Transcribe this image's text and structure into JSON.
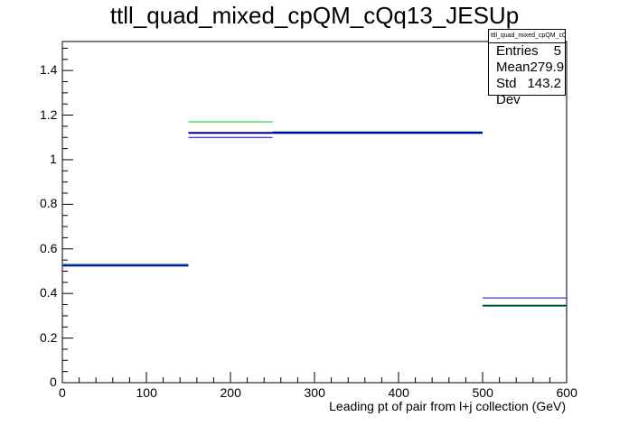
{
  "title": "ttll_quad_mixed_cpQM_cQq13_JESUp",
  "stats": {
    "name": "ttll_quad_mixed_cpQM_cQq13_JESUp",
    "rows": [
      {
        "label": "Entries",
        "value": "5"
      },
      {
        "label": "Mean",
        "value": "279.9"
      },
      {
        "label": "Std Dev",
        "value": "143.2"
      }
    ]
  },
  "chart_data": {
    "type": "line",
    "title": "ttll_quad_mixed_cpQM_cQq13_JESUp",
    "xlabel": "Leading pt of pair from l+j collection (GeV)",
    "ylabel": "",
    "xlim": [
      0,
      600
    ],
    "ylim": [
      0,
      1.53
    ],
    "x_ticks": [
      "0",
      "100",
      "200",
      "300",
      "400",
      "500",
      "600"
    ],
    "y_ticks": [
      "0",
      "0.2",
      "0.4",
      "0.6",
      "0.8",
      "1",
      "1.2",
      "1.4"
    ],
    "grid": false,
    "series": [
      {
        "color": "#000080",
        "bins": [
          {
            "x0": 0,
            "x1": 150,
            "y": 0.525
          },
          {
            "x0": 150,
            "x1": 250,
            "y": 1.12
          },
          {
            "x0": 250,
            "x1": 500,
            "y": 1.12
          },
          {
            "x0": 500,
            "x1": 600,
            "y": 0.345
          }
        ]
      },
      {
        "color": "#00cc00",
        "bins": [
          {
            "x0": 0,
            "x1": 150,
            "y": 0.528
          },
          {
            "x0": 150,
            "x1": 250,
            "y": 1.17
          },
          {
            "x0": 250,
            "x1": 500,
            "y": 1.125
          },
          {
            "x0": 500,
            "x1": 600,
            "y": 0.343
          }
        ]
      },
      {
        "color": "#0000ff",
        "bins": [
          {
            "x0": 0,
            "x1": 150,
            "y": 0.53
          },
          {
            "x0": 150,
            "x1": 250,
            "y": 1.1
          },
          {
            "x0": 250,
            "x1": 500,
            "y": 1.123
          },
          {
            "x0": 500,
            "x1": 600,
            "y": 0.38
          }
        ]
      }
    ]
  }
}
